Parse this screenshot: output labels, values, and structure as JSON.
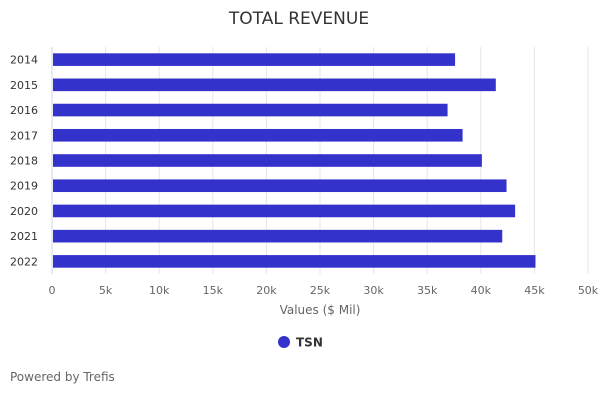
{
  "chart_data": {
    "type": "bar",
    "orientation": "horizontal",
    "title": "TOTAL REVENUE",
    "categories": [
      "2014",
      "2015",
      "2016",
      "2017",
      "2018",
      "2019",
      "2020",
      "2021",
      "2022"
    ],
    "series": [
      {
        "name": "TSN",
        "values": [
          37600,
          41400,
          36900,
          38300,
          40100,
          42400,
          43200,
          42000,
          45100
        ]
      }
    ],
    "xlabel": "Values ($ Mil)",
    "ylabel": "",
    "xlim": [
      0,
      50000
    ],
    "ticks": [
      0,
      5000,
      10000,
      15000,
      20000,
      25000,
      30000,
      35000,
      40000,
      45000,
      50000
    ],
    "tick_labels": [
      "0",
      "5k",
      "10k",
      "15k",
      "20k",
      "25k",
      "30k",
      "35k",
      "40k",
      "45k",
      "50k"
    ],
    "grid": true,
    "legend": "bottom-center",
    "bar_color": "#3333cc"
  },
  "credit": "Powered by Trefis"
}
